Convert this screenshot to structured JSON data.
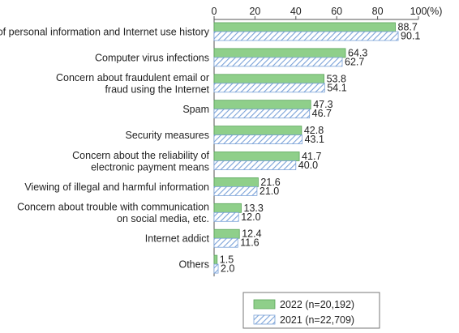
{
  "chart_data": {
    "type": "bar",
    "orientation": "horizontal",
    "categories": [
      [
        "Leak of personal information and Internet use history"
      ],
      [
        "Computer virus infections"
      ],
      [
        "Concern about fraudulent email or",
        "fraud using the Internet"
      ],
      [
        "Spam"
      ],
      [
        "Security measures"
      ],
      [
        "Concern about the reliability of",
        "electronic payment means"
      ],
      [
        "Viewing of illegal and harmful information"
      ],
      [
        "Concern about trouble with communication",
        "on social media, etc."
      ],
      [
        "Internet addict"
      ],
      [
        "Others"
      ]
    ],
    "series": [
      {
        "name": "2022 (n=20,192)",
        "color": "#8fcf8a",
        "pattern": "solid",
        "values": [
          88.7,
          64.3,
          53.8,
          47.3,
          42.8,
          41.7,
          21.6,
          13.3,
          12.4,
          1.5
        ]
      },
      {
        "name": "2021 (n=22,709)",
        "color": "#7aa2d8",
        "pattern": "hatched",
        "values": [
          90.1,
          62.7,
          54.1,
          46.7,
          43.1,
          40.0,
          21.0,
          12.0,
          11.6,
          2.0
        ]
      }
    ],
    "xlim": [
      0,
      100
    ],
    "xticks": [
      "0",
      "20",
      "40",
      "60",
      "80",
      "100"
    ],
    "x_unit": "(%)",
    "legend_position": "bottom-right",
    "grid": false
  }
}
